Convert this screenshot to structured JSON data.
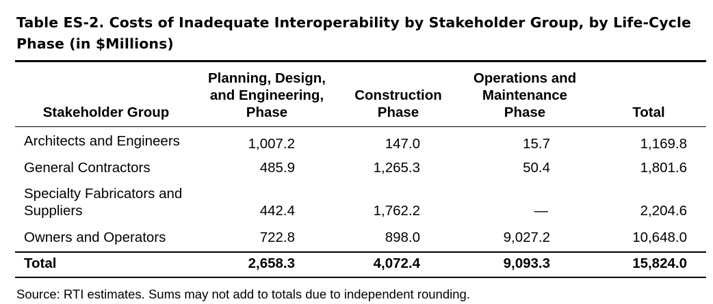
{
  "title": "Table ES-2.  Costs of Inadequate Interoperability by Stakeholder Group, by Life-Cycle Phase (in $Millions)",
  "columns": {
    "group": "Stakeholder Group",
    "planning": [
      "Planning, Design,",
      "and Engineering,",
      "Phase"
    ],
    "construction": [
      "Construction",
      "Phase"
    ],
    "operations": [
      "Operations and",
      "Maintenance",
      "Phase"
    ],
    "total": "Total"
  },
  "rows": [
    {
      "group": [
        "Architects and Engineers"
      ],
      "planning": "1,007.2",
      "construction": "147.0",
      "operations": "15.7",
      "total": "1,169.8"
    },
    {
      "group": [
        "General Contractors"
      ],
      "planning": "485.9",
      "construction": "1,265.3",
      "operations": "50.4",
      "total": "1,801.6"
    },
    {
      "group": [
        "Specialty Fabricators and",
        "Suppliers"
      ],
      "planning": "442.4",
      "construction": "1,762.2",
      "operations": "—",
      "total": "2,204.6"
    },
    {
      "group": [
        "Owners and Operators"
      ],
      "planning": "722.8",
      "construction": "898.0",
      "operations": "9,027.2",
      "total": "10,648.0"
    }
  ],
  "total_row": {
    "group": "Total",
    "planning": "2,658.3",
    "construction": "4,072.4",
    "operations": "9,093.3",
    "total": "15,824.0"
  },
  "source": "Source:  RTI estimates.  Sums may not add to totals due to independent rounding."
}
